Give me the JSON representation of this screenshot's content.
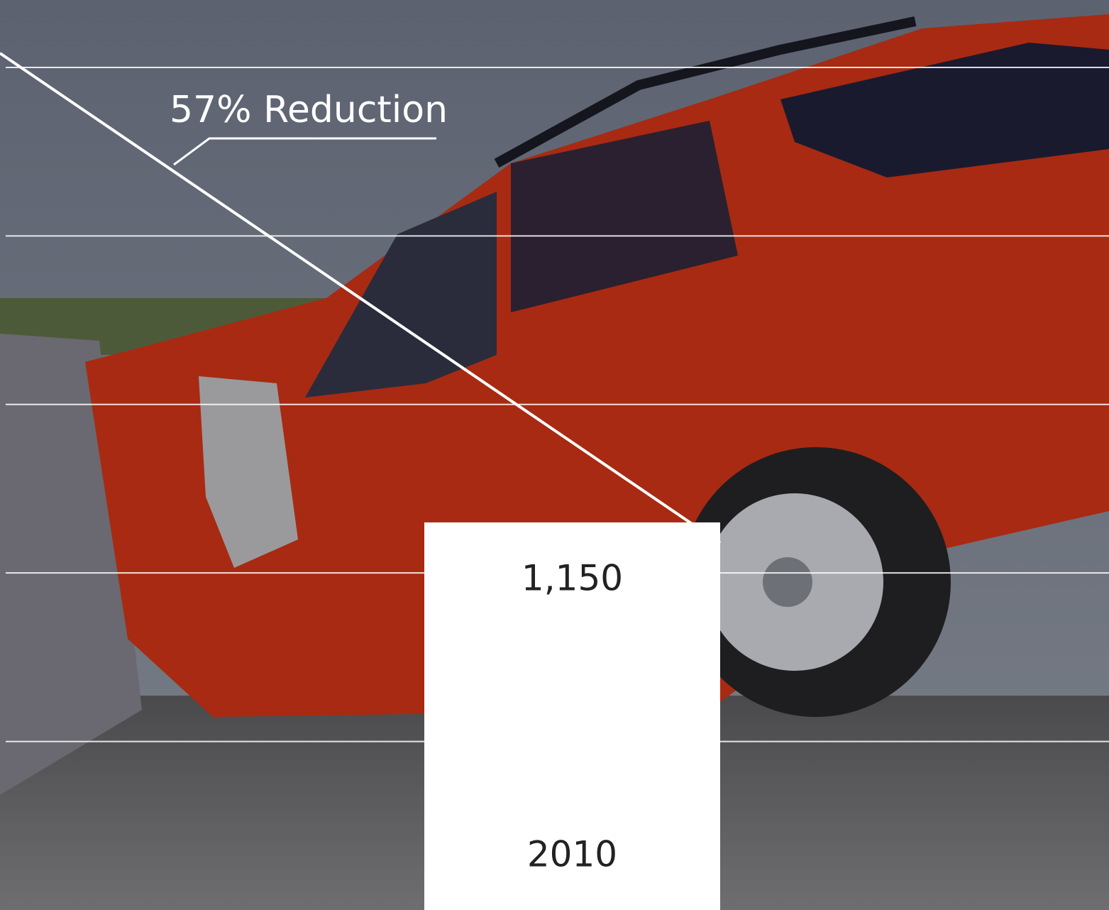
{
  "chart_data": {
    "type": "bar",
    "categories": [
      "2010"
    ],
    "values": [
      1150
    ],
    "value_labels": [
      "1,150"
    ],
    "color": "#ffffff",
    "annotation": "57% Reduction",
    "ylim": [
      0,
      2700
    ],
    "yticks": [
      500,
      1000,
      1500,
      2000,
      2500
    ],
    "grid": true
  }
}
